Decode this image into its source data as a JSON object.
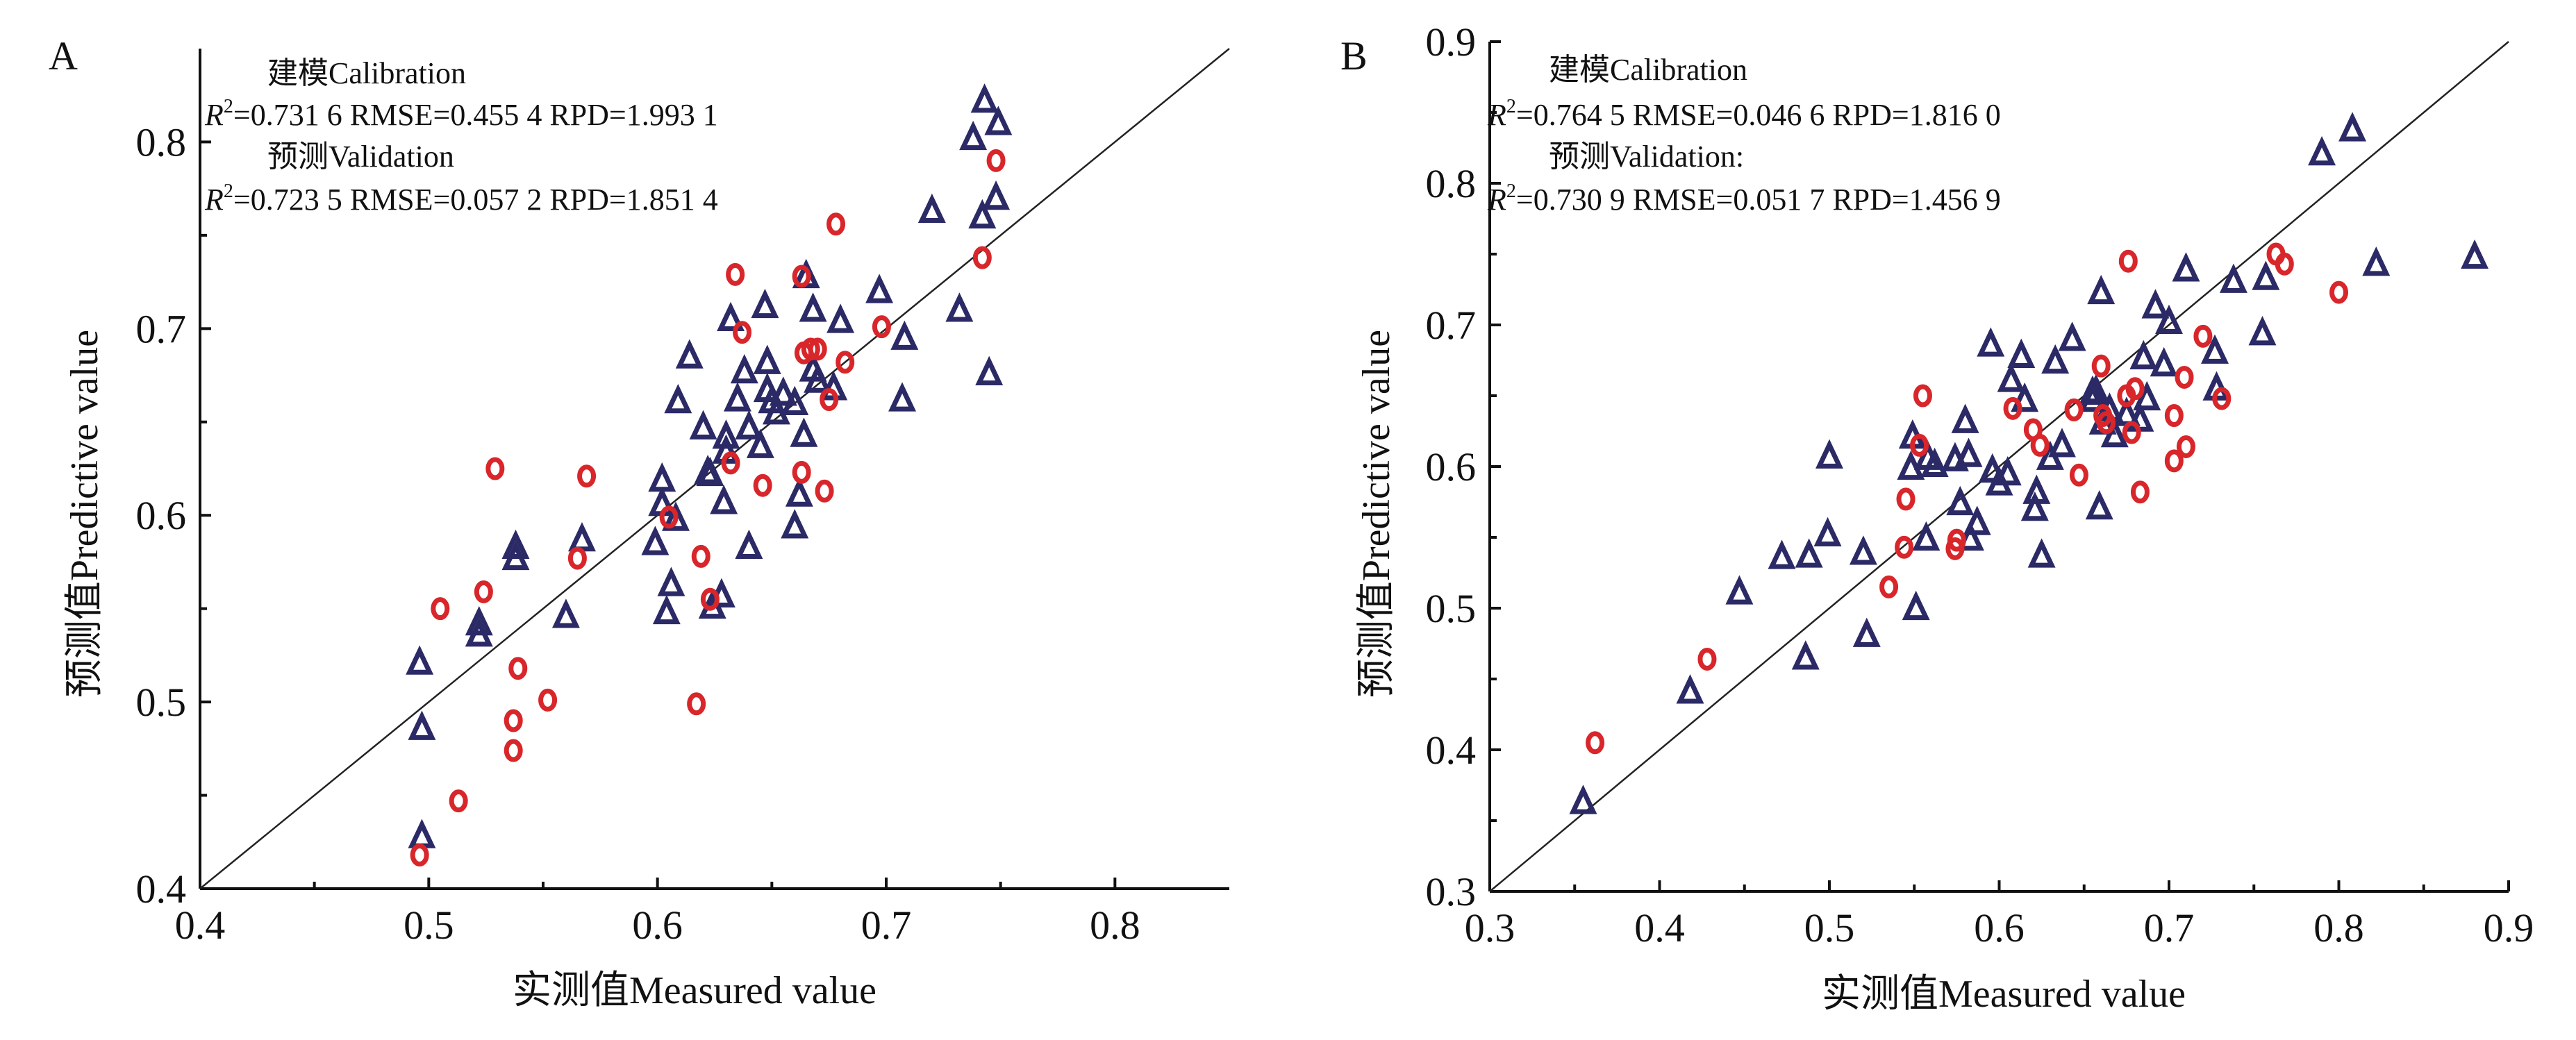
{
  "figure_title": "",
  "chart_data": [
    {
      "type": "scatter",
      "panel": "A",
      "title": "",
      "xlabel": "实测值Measured value",
      "ylabel": "预测值Predictive value",
      "xlim": [
        0.4,
        0.85
      ],
      "ylim": [
        0.4,
        0.85
      ],
      "x_ticks": [
        "0.4",
        "0.5",
        "0.6",
        "0.7",
        "0.8"
      ],
      "y_ticks": [
        "0.4",
        "0.5",
        "0.6",
        "0.7",
        "0.8"
      ],
      "grid": false,
      "reference_line": "y = x",
      "stats": {
        "calibration_label": "建模Calibration",
        "calibration_text": "=0.731 6  RMSE=0.455 4  RPD=1.993 1",
        "validation_label": "预测Validation",
        "validation_text": "=0.723 5  RMSE=0.057 2  RPD=1.851 4"
      },
      "series": [
        {
          "name": "Calibration",
          "marker": "triangle",
          "color": "#2b2a66",
          "points": [
            [
              0.496,
              0.521
            ],
            [
              0.497,
              0.486
            ],
            [
              0.497,
              0.428
            ],
            [
              0.522,
              0.542
            ],
            [
              0.522,
              0.536
            ],
            [
              0.538,
              0.583
            ],
            [
              0.538,
              0.577
            ],
            [
              0.56,
              0.546
            ],
            [
              0.567,
              0.587
            ],
            [
              0.599,
              0.585
            ],
            [
              0.602,
              0.619
            ],
            [
              0.602,
              0.606
            ],
            [
              0.604,
              0.548
            ],
            [
              0.606,
              0.563
            ],
            [
              0.608,
              0.598
            ],
            [
              0.609,
              0.661
            ],
            [
              0.614,
              0.685
            ],
            [
              0.62,
              0.647
            ],
            [
              0.622,
              0.623
            ],
            [
              0.623,
              0.622
            ],
            [
              0.624,
              0.551
            ],
            [
              0.628,
              0.557
            ],
            [
              0.629,
              0.607
            ],
            [
              0.63,
              0.642
            ],
            [
              0.63,
              0.634
            ],
            [
              0.632,
              0.705
            ],
            [
              0.635,
              0.662
            ],
            [
              0.638,
              0.677
            ],
            [
              0.64,
              0.583
            ],
            [
              0.64,
              0.647
            ],
            [
              0.645,
              0.637
            ],
            [
              0.647,
              0.712
            ],
            [
              0.648,
              0.682
            ],
            [
              0.648,
              0.667
            ],
            [
              0.65,
              0.661
            ],
            [
              0.652,
              0.655
            ],
            [
              0.655,
              0.665
            ],
            [
              0.66,
              0.66
            ],
            [
              0.66,
              0.594
            ],
            [
              0.662,
              0.611
            ],
            [
              0.664,
              0.643
            ],
            [
              0.665,
              0.728
            ],
            [
              0.668,
              0.71
            ],
            [
              0.668,
              0.678
            ],
            [
              0.67,
              0.672
            ],
            [
              0.677,
              0.668
            ],
            [
              0.68,
              0.704
            ],
            [
              0.697,
              0.72
            ],
            [
              0.707,
              0.662
            ],
            [
              0.708,
              0.695
            ],
            [
              0.72,
              0.763
            ],
            [
              0.732,
              0.71
            ],
            [
              0.738,
              0.802
            ],
            [
              0.742,
              0.76
            ],
            [
              0.743,
              0.822
            ],
            [
              0.745,
              0.676
            ],
            [
              0.748,
              0.77
            ],
            [
              0.749,
              0.81
            ]
          ]
        },
        {
          "name": "Validation",
          "marker": "circle",
          "color": "#d8262b",
          "points": [
            [
              0.496,
              0.418
            ],
            [
              0.505,
              0.55
            ],
            [
              0.513,
              0.447
            ],
            [
              0.524,
              0.559
            ],
            [
              0.529,
              0.625
            ],
            [
              0.537,
              0.49
            ],
            [
              0.537,
              0.474
            ],
            [
              0.539,
              0.518
            ],
            [
              0.552,
              0.501
            ],
            [
              0.565,
              0.577
            ],
            [
              0.569,
              0.621
            ],
            [
              0.605,
              0.599
            ],
            [
              0.617,
              0.499
            ],
            [
              0.619,
              0.578
            ],
            [
              0.623,
              0.555
            ],
            [
              0.632,
              0.628
            ],
            [
              0.634,
              0.729
            ],
            [
              0.637,
              0.698
            ],
            [
              0.646,
              0.616
            ],
            [
              0.663,
              0.623
            ],
            [
              0.663,
              0.728
            ],
            [
              0.664,
              0.687
            ],
            [
              0.667,
              0.689
            ],
            [
              0.67,
              0.689
            ],
            [
              0.673,
              0.613
            ],
            [
              0.675,
              0.662
            ],
            [
              0.678,
              0.756
            ],
            [
              0.682,
              0.682
            ],
            [
              0.698,
              0.701
            ],
            [
              0.742,
              0.738
            ],
            [
              0.748,
              0.79
            ]
          ]
        }
      ]
    },
    {
      "type": "scatter",
      "panel": "B",
      "title": "",
      "xlabel": "实测值Measured value",
      "ylabel": "预测值Predictive value",
      "xlim": [
        0.3,
        0.9
      ],
      "ylim": [
        0.3,
        0.9
      ],
      "x_ticks": [
        "0.3",
        "0.4",
        "0.5",
        "0.6",
        "0.7",
        "0.8",
        "0.9"
      ],
      "y_ticks": [
        "0.3",
        "0.4",
        "0.5",
        "0.6",
        "0.7",
        "0.8",
        "0.9"
      ],
      "grid": false,
      "reference_line": "y = x",
      "stats": {
        "calibration_label": "建模Calibration",
        "calibration_text": "=0.764 5  RMSE=0.046 6  RPD=1.816 0",
        "validation_label": "预测Validation:",
        "validation_text": "=0.730 9  RMSE=0.051 7  RPD=1.456 9"
      },
      "series": [
        {
          "name": "Calibration",
          "marker": "triangle",
          "color": "#2b2a66",
          "points": [
            [
              0.355,
              0.363
            ],
            [
              0.418,
              0.441
            ],
            [
              0.447,
              0.511
            ],
            [
              0.472,
              0.536
            ],
            [
              0.486,
              0.465
            ],
            [
              0.488,
              0.537
            ],
            [
              0.499,
              0.552
            ],
            [
              0.5,
              0.607
            ],
            [
              0.52,
              0.539
            ],
            [
              0.522,
              0.481
            ],
            [
              0.548,
              0.599
            ],
            [
              0.549,
              0.621
            ],
            [
              0.551,
              0.5
            ],
            [
              0.557,
              0.549
            ],
            [
              0.558,
              0.606
            ],
            [
              0.562,
              0.601
            ],
            [
              0.574,
              0.605
            ],
            [
              0.577,
              0.574
            ],
            [
              0.58,
              0.632
            ],
            [
              0.582,
              0.608
            ],
            [
              0.583,
              0.549
            ],
            [
              0.587,
              0.56
            ],
            [
              0.595,
              0.686
            ],
            [
              0.596,
              0.597
            ],
            [
              0.6,
              0.588
            ],
            [
              0.605,
              0.595
            ],
            [
              0.607,
              0.661
            ],
            [
              0.613,
              0.678
            ],
            [
              0.615,
              0.647
            ],
            [
              0.621,
              0.57
            ],
            [
              0.622,
              0.582
            ],
            [
              0.625,
              0.537
            ],
            [
              0.63,
              0.606
            ],
            [
              0.633,
              0.674
            ],
            [
              0.637,
              0.615
            ],
            [
              0.643,
              0.69
            ],
            [
              0.655,
              0.652
            ],
            [
              0.655,
              0.647
            ],
            [
              0.657,
              0.653
            ],
            [
              0.659,
              0.571
            ],
            [
              0.66,
              0.723
            ],
            [
              0.661,
              0.631
            ],
            [
              0.665,
              0.64
            ],
            [
              0.668,
              0.622
            ],
            [
              0.675,
              0.637
            ],
            [
              0.683,
              0.633
            ],
            [
              0.685,
              0.677
            ],
            [
              0.687,
              0.648
            ],
            [
              0.692,
              0.713
            ],
            [
              0.697,
              0.672
            ],
            [
              0.7,
              0.702
            ],
            [
              0.71,
              0.739
            ],
            [
              0.727,
              0.681
            ],
            [
              0.728,
              0.655
            ],
            [
              0.738,
              0.731
            ],
            [
              0.755,
              0.694
            ],
            [
              0.757,
              0.733
            ],
            [
              0.79,
              0.821
            ],
            [
              0.808,
              0.838
            ],
            [
              0.822,
              0.743
            ],
            [
              0.88,
              0.748
            ]
          ]
        },
        {
          "name": "Validation",
          "marker": "circle",
          "color": "#d8262b",
          "points": [
            [
              0.362,
              0.405
            ],
            [
              0.428,
              0.464
            ],
            [
              0.535,
              0.515
            ],
            [
              0.544,
              0.543
            ],
            [
              0.545,
              0.577
            ],
            [
              0.553,
              0.615
            ],
            [
              0.555,
              0.65
            ],
            [
              0.574,
              0.542
            ],
            [
              0.575,
              0.548
            ],
            [
              0.608,
              0.641
            ],
            [
              0.62,
              0.626
            ],
            [
              0.624,
              0.615
            ],
            [
              0.644,
              0.64
            ],
            [
              0.647,
              0.594
            ],
            [
              0.66,
              0.671
            ],
            [
              0.661,
              0.636
            ],
            [
              0.663,
              0.631
            ],
            [
              0.675,
              0.65
            ],
            [
              0.676,
              0.745
            ],
            [
              0.678,
              0.624
            ],
            [
              0.68,
              0.655
            ],
            [
              0.683,
              0.582
            ],
            [
              0.703,
              0.636
            ],
            [
              0.703,
              0.604
            ],
            [
              0.709,
              0.663
            ],
            [
              0.71,
              0.614
            ],
            [
              0.72,
              0.692
            ],
            [
              0.731,
              0.648
            ],
            [
              0.763,
              0.75
            ],
            [
              0.768,
              0.743
            ],
            [
              0.8,
              0.723
            ]
          ]
        }
      ]
    }
  ],
  "panels": [
    {
      "label": "A"
    },
    {
      "label": "B"
    }
  ]
}
